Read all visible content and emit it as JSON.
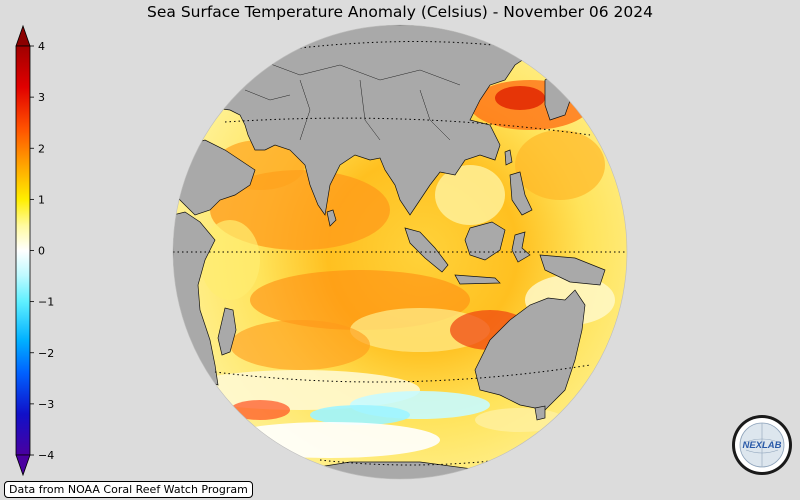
{
  "title": "Sea Surface Temperature Anomaly (Celsius) - November 06 2024",
  "credit": "Data from NOAA Coral Reef Watch Program",
  "logo": {
    "text": "NEXLAB",
    "icon": "nexlab-globe-logo"
  },
  "colorbar": {
    "min": -4,
    "max": 4,
    "ticks": [
      "4",
      "3",
      "2",
      "1",
      "0",
      "−1",
      "−2",
      "−3",
      "−4"
    ],
    "colors": {
      "dark_red": "#8b0000",
      "red": "#ff1a00",
      "orange": "#ff8c00",
      "yellow": "#ffee00",
      "white": "#ffffff",
      "cyan": "#5ff5ff",
      "blue": "#0064ff",
      "navy": "#1010c8",
      "violet": "#5a00a0"
    }
  },
  "map": {
    "projection": "orthographic",
    "center": "Indian Ocean / Maritime Continent",
    "land_color": "#a9a9a9",
    "gridlines": "dotted latitude lines"
  }
}
